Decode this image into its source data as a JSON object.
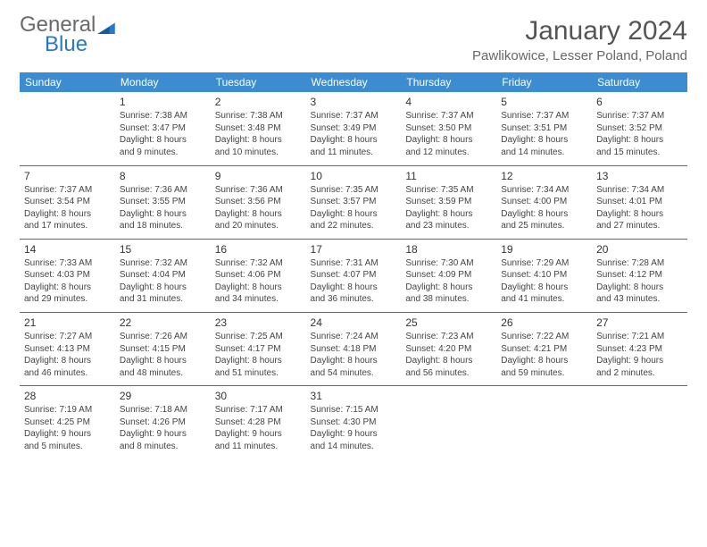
{
  "brand": {
    "part1": "General",
    "part2": "Blue"
  },
  "title": "January 2024",
  "location": "Pawlikowice, Lesser Poland, Poland",
  "colors": {
    "header_bg": "#3b8cd1",
    "row_border": "#2a78c3",
    "text": "#444444",
    "title": "#555555"
  },
  "weekdays": [
    "Sunday",
    "Monday",
    "Tuesday",
    "Wednesday",
    "Thursday",
    "Friday",
    "Saturday"
  ],
  "weeks": [
    [
      {
        "empty": true
      },
      {
        "day": "1",
        "sunrise": "Sunrise: 7:38 AM",
        "sunset": "Sunset: 3:47 PM",
        "daylight1": "Daylight: 8 hours",
        "daylight2": "and 9 minutes."
      },
      {
        "day": "2",
        "sunrise": "Sunrise: 7:38 AM",
        "sunset": "Sunset: 3:48 PM",
        "daylight1": "Daylight: 8 hours",
        "daylight2": "and 10 minutes."
      },
      {
        "day": "3",
        "sunrise": "Sunrise: 7:37 AM",
        "sunset": "Sunset: 3:49 PM",
        "daylight1": "Daylight: 8 hours",
        "daylight2": "and 11 minutes."
      },
      {
        "day": "4",
        "sunrise": "Sunrise: 7:37 AM",
        "sunset": "Sunset: 3:50 PM",
        "daylight1": "Daylight: 8 hours",
        "daylight2": "and 12 minutes."
      },
      {
        "day": "5",
        "sunrise": "Sunrise: 7:37 AM",
        "sunset": "Sunset: 3:51 PM",
        "daylight1": "Daylight: 8 hours",
        "daylight2": "and 14 minutes."
      },
      {
        "day": "6",
        "sunrise": "Sunrise: 7:37 AM",
        "sunset": "Sunset: 3:52 PM",
        "daylight1": "Daylight: 8 hours",
        "daylight2": "and 15 minutes."
      }
    ],
    [
      {
        "day": "7",
        "sunrise": "Sunrise: 7:37 AM",
        "sunset": "Sunset: 3:54 PM",
        "daylight1": "Daylight: 8 hours",
        "daylight2": "and 17 minutes."
      },
      {
        "day": "8",
        "sunrise": "Sunrise: 7:36 AM",
        "sunset": "Sunset: 3:55 PM",
        "daylight1": "Daylight: 8 hours",
        "daylight2": "and 18 minutes."
      },
      {
        "day": "9",
        "sunrise": "Sunrise: 7:36 AM",
        "sunset": "Sunset: 3:56 PM",
        "daylight1": "Daylight: 8 hours",
        "daylight2": "and 20 minutes."
      },
      {
        "day": "10",
        "sunrise": "Sunrise: 7:35 AM",
        "sunset": "Sunset: 3:57 PM",
        "daylight1": "Daylight: 8 hours",
        "daylight2": "and 22 minutes."
      },
      {
        "day": "11",
        "sunrise": "Sunrise: 7:35 AM",
        "sunset": "Sunset: 3:59 PM",
        "daylight1": "Daylight: 8 hours",
        "daylight2": "and 23 minutes."
      },
      {
        "day": "12",
        "sunrise": "Sunrise: 7:34 AM",
        "sunset": "Sunset: 4:00 PM",
        "daylight1": "Daylight: 8 hours",
        "daylight2": "and 25 minutes."
      },
      {
        "day": "13",
        "sunrise": "Sunrise: 7:34 AM",
        "sunset": "Sunset: 4:01 PM",
        "daylight1": "Daylight: 8 hours",
        "daylight2": "and 27 minutes."
      }
    ],
    [
      {
        "day": "14",
        "sunrise": "Sunrise: 7:33 AM",
        "sunset": "Sunset: 4:03 PM",
        "daylight1": "Daylight: 8 hours",
        "daylight2": "and 29 minutes."
      },
      {
        "day": "15",
        "sunrise": "Sunrise: 7:32 AM",
        "sunset": "Sunset: 4:04 PM",
        "daylight1": "Daylight: 8 hours",
        "daylight2": "and 31 minutes."
      },
      {
        "day": "16",
        "sunrise": "Sunrise: 7:32 AM",
        "sunset": "Sunset: 4:06 PM",
        "daylight1": "Daylight: 8 hours",
        "daylight2": "and 34 minutes."
      },
      {
        "day": "17",
        "sunrise": "Sunrise: 7:31 AM",
        "sunset": "Sunset: 4:07 PM",
        "daylight1": "Daylight: 8 hours",
        "daylight2": "and 36 minutes."
      },
      {
        "day": "18",
        "sunrise": "Sunrise: 7:30 AM",
        "sunset": "Sunset: 4:09 PM",
        "daylight1": "Daylight: 8 hours",
        "daylight2": "and 38 minutes."
      },
      {
        "day": "19",
        "sunrise": "Sunrise: 7:29 AM",
        "sunset": "Sunset: 4:10 PM",
        "daylight1": "Daylight: 8 hours",
        "daylight2": "and 41 minutes."
      },
      {
        "day": "20",
        "sunrise": "Sunrise: 7:28 AM",
        "sunset": "Sunset: 4:12 PM",
        "daylight1": "Daylight: 8 hours",
        "daylight2": "and 43 minutes."
      }
    ],
    [
      {
        "day": "21",
        "sunrise": "Sunrise: 7:27 AM",
        "sunset": "Sunset: 4:13 PM",
        "daylight1": "Daylight: 8 hours",
        "daylight2": "and 46 minutes."
      },
      {
        "day": "22",
        "sunrise": "Sunrise: 7:26 AM",
        "sunset": "Sunset: 4:15 PM",
        "daylight1": "Daylight: 8 hours",
        "daylight2": "and 48 minutes."
      },
      {
        "day": "23",
        "sunrise": "Sunrise: 7:25 AM",
        "sunset": "Sunset: 4:17 PM",
        "daylight1": "Daylight: 8 hours",
        "daylight2": "and 51 minutes."
      },
      {
        "day": "24",
        "sunrise": "Sunrise: 7:24 AM",
        "sunset": "Sunset: 4:18 PM",
        "daylight1": "Daylight: 8 hours",
        "daylight2": "and 54 minutes."
      },
      {
        "day": "25",
        "sunrise": "Sunrise: 7:23 AM",
        "sunset": "Sunset: 4:20 PM",
        "daylight1": "Daylight: 8 hours",
        "daylight2": "and 56 minutes."
      },
      {
        "day": "26",
        "sunrise": "Sunrise: 7:22 AM",
        "sunset": "Sunset: 4:21 PM",
        "daylight1": "Daylight: 8 hours",
        "daylight2": "and 59 minutes."
      },
      {
        "day": "27",
        "sunrise": "Sunrise: 7:21 AM",
        "sunset": "Sunset: 4:23 PM",
        "daylight1": "Daylight: 9 hours",
        "daylight2": "and 2 minutes."
      }
    ],
    [
      {
        "day": "28",
        "sunrise": "Sunrise: 7:19 AM",
        "sunset": "Sunset: 4:25 PM",
        "daylight1": "Daylight: 9 hours",
        "daylight2": "and 5 minutes."
      },
      {
        "day": "29",
        "sunrise": "Sunrise: 7:18 AM",
        "sunset": "Sunset: 4:26 PM",
        "daylight1": "Daylight: 9 hours",
        "daylight2": "and 8 minutes."
      },
      {
        "day": "30",
        "sunrise": "Sunrise: 7:17 AM",
        "sunset": "Sunset: 4:28 PM",
        "daylight1": "Daylight: 9 hours",
        "daylight2": "and 11 minutes."
      },
      {
        "day": "31",
        "sunrise": "Sunrise: 7:15 AM",
        "sunset": "Sunset: 4:30 PM",
        "daylight1": "Daylight: 9 hours",
        "daylight2": "and 14 minutes."
      },
      {
        "empty": true
      },
      {
        "empty": true
      },
      {
        "empty": true
      }
    ]
  ]
}
